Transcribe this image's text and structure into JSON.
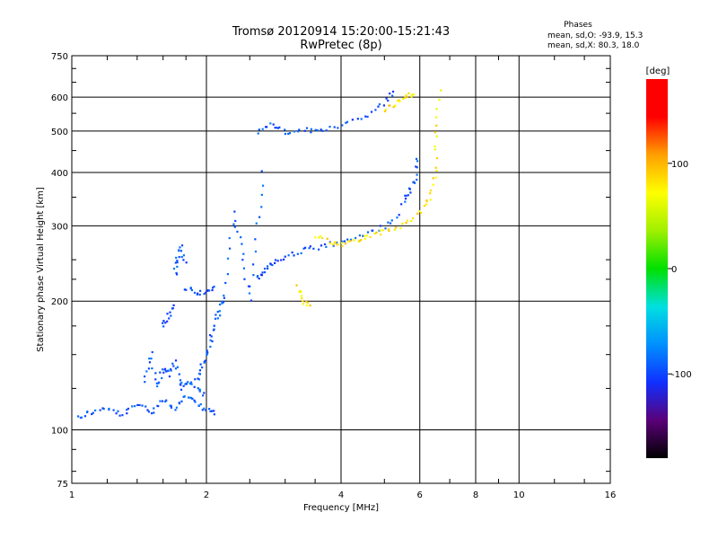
{
  "chart_data": {
    "type": "scatter",
    "title": "Tromsø 20120914 15:20:00-15:21:43",
    "subtitle": "RwPretec (8p)",
    "xlabel": "Frequency [MHz]",
    "ylabel": "Stationary phase Virtual Height [km]",
    "xscale": "log",
    "yscale": "log",
    "xlim": [
      1,
      16
    ],
    "ylim": [
      75,
      750
    ],
    "xticks": [
      1,
      2,
      4,
      6,
      8,
      10,
      16
    ],
    "yticks": [
      75,
      100,
      200,
      300,
      400,
      500,
      600,
      750
    ],
    "grid": true,
    "colorbar": {
      "label": "[deg]",
      "ticks": [
        100,
        0,
        -100
      ],
      "range": [
        -180,
        180
      ],
      "colors": [
        "#000000",
        "#5a0078",
        "#1030ff",
        "#0090ff",
        "#00e0e0",
        "#00e000",
        "#a0f000",
        "#ffff00",
        "#ffa000",
        "#ff0000",
        "#ff0000"
      ]
    },
    "stats": {
      "title": "Phases",
      "line1": "mean, sd,O: -93.9, 15.3",
      "line2": "mean, sd,X:  80.3, 18.0"
    },
    "traces": [
      {
        "mode": "O",
        "segments": [
          {
            "x": [
              1.03,
              1.1,
              1.2,
              1.3,
              1.4,
              1.5,
              1.6,
              1.7,
              1.8,
              1.9,
              2.0,
              2.1
            ],
            "y": [
              107,
              110,
              112,
              108,
              115,
              110,
              118,
              112,
              120,
              115,
              112,
              108
            ]
          },
          {
            "x": [
              1.45,
              1.5,
              1.55,
              1.6,
              1.65,
              1.7,
              1.75,
              1.8,
              1.9,
              2.0
            ],
            "y": [
              130,
              150,
              125,
              140,
              135,
              145,
              125,
              130,
              125,
              120
            ]
          },
          {
            "x": [
              1.6,
              1.65,
              1.7
            ],
            "y": [
              175,
              185,
              195
            ]
          },
          {
            "x": [
              1.7,
              1.72,
              1.75,
              1.8
            ],
            "y": [
              230,
              250,
              270,
              240
            ]
          },
          {
            "x": [
              1.8,
              1.9,
              2.0,
              2.1
            ],
            "y": [
              215,
              210,
              210,
              215
            ]
          },
          {
            "x": [
              1.9,
              1.95,
              2.0,
              2.05,
              2.1,
              2.15,
              2.2
            ],
            "y": [
              130,
              140,
              150,
              165,
              180,
              195,
              210
            ]
          },
          {
            "x": [
              2.2,
              2.3,
              2.4,
              2.5,
              2.6,
              2.7
            ],
            "y": [
              220,
              320,
              260,
              200,
              300,
              420
            ]
          },
          {
            "x": [
              2.6,
              2.7,
              2.8,
              3.0,
              3.3,
              3.6,
              4.0,
              4.5,
              5.0,
              5.5
            ],
            "y": [
              225,
              235,
              245,
              255,
              262,
              268,
              275,
              285,
              300,
              320
            ]
          },
          {
            "x": [
              5.5,
              5.7,
              5.85,
              5.95
            ],
            "y": [
              340,
              360,
              390,
              440
            ]
          },
          {
            "x": [
              2.6,
              2.8,
              3.0,
              3.3,
              3.6,
              4.0,
              4.5,
              5.0,
              5.3
            ],
            "y": [
              500,
              520,
              495,
              500,
              505,
              515,
              540,
              580,
              630
            ]
          }
        ]
      },
      {
        "mode": "X",
        "segments": [
          {
            "x": [
              3.5,
              3.8,
              4.0,
              4.3,
              4.6,
              5.0,
              5.5,
              6.0,
              6.3,
              6.5,
              6.55,
              6.65
            ],
            "y": [
              285,
              275,
              272,
              278,
              285,
              290,
              300,
              320,
              350,
              400,
              500,
              640
            ]
          },
          {
            "x": [
              3.2,
              3.3,
              3.4
            ],
            "y": [
              215,
              200,
              195
            ]
          },
          {
            "x": [
              5.0,
              5.3,
              5.6,
              5.9
            ],
            "y": [
              560,
              580,
              600,
              620
            ]
          }
        ]
      }
    ]
  }
}
